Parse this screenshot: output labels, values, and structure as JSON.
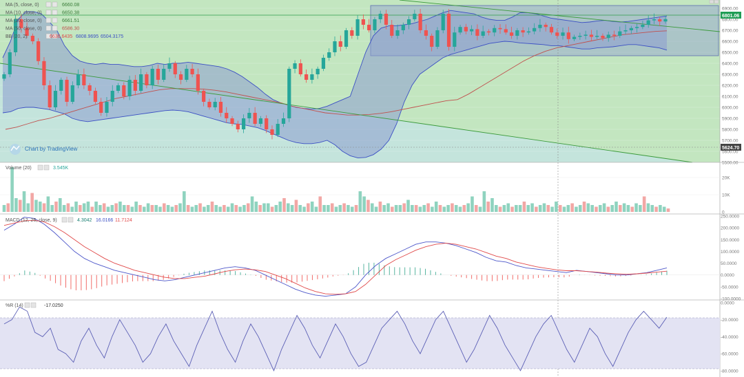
{
  "watermark": {
    "text": "Chart by TradingView"
  },
  "price_pane": {
    "indicators": [
      {
        "id": "ma5",
        "label": "MA (5, close, 0)",
        "values": [
          "6660.08"
        ]
      },
      {
        "id": "ma10",
        "label": "MA (10, close, 0)",
        "values": [
          "6650.38"
        ]
      },
      {
        "id": "ma20",
        "label": "MA (20, close, 0)",
        "values": [
          "6661.51"
        ]
      },
      {
        "id": "ma50",
        "label": "MA (50, close, 0)",
        "values": [
          "6586.30"
        ]
      },
      {
        "id": "bb",
        "label": "BB (20, 2)",
        "values": [
          "6636.6435",
          "6808.9695",
          "6504.3175"
        ]
      }
    ],
    "last_price": "6801.06",
    "crosshair_price": "5624.70"
  },
  "volume_pane": {
    "label": "Volume (20)",
    "value": "3.545K"
  },
  "macd_pane": {
    "label": "MACD (12, 26, close, 9)",
    "values": [
      "4.3042",
      "16.0166",
      "11.7124"
    ]
  },
  "wr_pane": {
    "label": "%R (14)",
    "value": "-17.0250"
  },
  "colors": {
    "up": "#26a69a",
    "down": "#ef5350",
    "bb_fill": "#8c9dd0",
    "bb_line": "#3b4fc4",
    "green_bg": "#c3e6c0",
    "wr_band": "#e0e0f2",
    "macd": "#4b55c9",
    "signal": "#e04848"
  },
  "chart_data": [
    {
      "type": "candlestick",
      "title": "",
      "ylim": [
        5500,
        6950
      ],
      "y_ticks": [
        "6900.00",
        "6800.00",
        "6700.00",
        "6600.00",
        "6500.00",
        "6400.00",
        "6300.00",
        "6200.00",
        "6100.00",
        "6000.00",
        "5900.00",
        "5800.00",
        "5700.00",
        "5600.00",
        "5500.00"
      ],
      "close": [
        6300,
        6500,
        6800,
        6720,
        6650,
        6600,
        6420,
        6200,
        6000,
        6150,
        6250,
        6050,
        6200,
        6300,
        6200,
        6150,
        6050,
        5950,
        6050,
        6150,
        6200,
        6100,
        6250,
        6150,
        6300,
        6200,
        6350,
        6250,
        6350,
        6400,
        6300,
        6250,
        6350,
        6300,
        6150,
        6050,
        6000,
        6050,
        5950,
        5900,
        5850,
        5800,
        5900,
        5950,
        5850,
        5900,
        5800,
        5750,
        5850,
        5900,
        6350,
        6400,
        6300,
        6250,
        6300,
        6350,
        6450,
        6500,
        6600,
        6550,
        6700,
        6650,
        6800,
        6750,
        6700,
        6800,
        6850,
        6750,
        6650,
        6700,
        6750,
        6800,
        6850,
        6700,
        6650,
        6550,
        6700,
        6850,
        6550,
        6680,
        6730,
        6690,
        6710,
        6650,
        6690,
        6680,
        6720,
        6710,
        6680,
        6650,
        6700,
        6680,
        6690,
        6720,
        6750,
        6730,
        6680,
        6650,
        6680,
        6620,
        6640,
        6650,
        6660,
        6640,
        6650,
        6630,
        6660,
        6650,
        6690,
        6700,
        6720,
        6730,
        6750,
        6790,
        6800,
        6780,
        6801
      ],
      "upper_band": [
        6450,
        6600,
        6800,
        6870,
        6870,
        6850,
        6780,
        6700,
        6560,
        6470,
        6420,
        6400,
        6390,
        6400,
        6390,
        6390,
        6380,
        6370,
        6370,
        6380,
        6400,
        6390,
        6400,
        6400,
        6410,
        6400,
        6390,
        6380,
        6370,
        6350,
        6320,
        6280,
        6230,
        6180,
        6120,
        6070,
        6040,
        6020,
        6000,
        5990,
        5985,
        5990,
        6010,
        6040,
        6070,
        6100,
        6300,
        6500,
        6650,
        6720,
        6740,
        6740,
        6750,
        6760,
        6780,
        6800,
        6830,
        6860,
        6880,
        6870,
        6860,
        6850,
        6820,
        6800,
        6790,
        6790,
        6820,
        6860,
        6860,
        6850,
        6830,
        6810,
        6800,
        6790,
        6780,
        6770,
        6775,
        6785,
        6790,
        6780,
        6775,
        6780,
        6790,
        6800,
        6810,
        6820,
        6830
      ],
      "lower_band": [
        5950,
        5960,
        5990,
        6000,
        6000,
        5990,
        5980,
        5960,
        5940,
        5900,
        5880,
        5870,
        5880,
        5890,
        5900,
        5910,
        5920,
        5930,
        5940,
        5950,
        5960,
        5970,
        5975,
        5970,
        5960,
        5940,
        5920,
        5900,
        5880,
        5860,
        5850,
        5845,
        5830,
        5815,
        5790,
        5760,
        5730,
        5700,
        5680,
        5670,
        5670,
        5680,
        5700,
        5660,
        5600,
        5560,
        5540,
        5545,
        5570,
        5620,
        5700,
        5850,
        6050,
        6200,
        6300,
        6350,
        6400,
        6450,
        6480,
        6500,
        6520,
        6540,
        6560,
        6580,
        6590,
        6600,
        6595,
        6585,
        6580,
        6575,
        6570,
        6560,
        6560,
        6550,
        6540,
        6530,
        6530,
        6540,
        6545,
        6550,
        6560,
        6570,
        6570,
        6560,
        6550,
        6540,
        6520
      ],
      "ma50": [
        5800,
        5820,
        5850,
        5880,
        5900,
        5930,
        5960,
        5990,
        6020,
        6050,
        6080,
        6100,
        6120,
        6140,
        6160,
        6170,
        6170,
        6170,
        6165,
        6155,
        6140,
        6120,
        6100,
        6080,
        6060,
        6040,
        6010,
        5990,
        5970,
        5950,
        5940,
        5930,
        5930,
        5935,
        5945,
        5960,
        5980,
        6000,
        6020,
        6040,
        6060,
        6070,
        6120,
        6180,
        6240,
        6300,
        6360,
        6420,
        6470,
        6510,
        6540,
        6560,
        6580,
        6600,
        6620,
        6640,
        6660,
        6670,
        6680,
        6690,
        6695
      ],
      "trendlines": "descending support channel"
    },
    {
      "type": "bar",
      "title": "",
      "ylim": [
        0,
        28000
      ],
      "y_ticks": [
        "20K",
        "10K",
        "0"
      ],
      "values": [
        4,
        5,
        26,
        8,
        7,
        12,
        5,
        11,
        7,
        6,
        5,
        9,
        4,
        6,
        8,
        4,
        5,
        3,
        6,
        4,
        5,
        6,
        3,
        6,
        4,
        5,
        3,
        4,
        5,
        6,
        4,
        4,
        3,
        6,
        4,
        3,
        5,
        4,
        4,
        3,
        5,
        4,
        3,
        4,
        5,
        12,
        4,
        3,
        4,
        5,
        3,
        4,
        6,
        4,
        3,
        4,
        3,
        5,
        4,
        3,
        4,
        5,
        9,
        6,
        4,
        5,
        5,
        3,
        4,
        6,
        8,
        5,
        4,
        7,
        4,
        3,
        5,
        6,
        3,
        9,
        4,
        4,
        5,
        3,
        4,
        5,
        4,
        3,
        4,
        12,
        9,
        7,
        5,
        3,
        6,
        4,
        5,
        3,
        4,
        4,
        5,
        7,
        4,
        4,
        3,
        4,
        5,
        3,
        6,
        4,
        3,
        4,
        5,
        4,
        3,
        4,
        5,
        9,
        4,
        3,
        12,
        6,
        8,
        4,
        3,
        4,
        5,
        3,
        4,
        4,
        6,
        4,
        5,
        3,
        4,
        5,
        4,
        3,
        6,
        4,
        3,
        4,
        5,
        3,
        4,
        6,
        5,
        4,
        3,
        4,
        5,
        3,
        4,
        6,
        4,
        5,
        4,
        3,
        5,
        4,
        9,
        5,
        4,
        3,
        4,
        3,
        2
      ]
    },
    {
      "type": "line",
      "title": "",
      "ylim": [
        -100,
        250
      ],
      "y_ticks": [
        "250.0000",
        "200.0000",
        "150.0000",
        "100.0000",
        "50.0000",
        "0.0000",
        "-50.0000",
        "-100.0000"
      ],
      "series": [
        {
          "values": [
            190,
            215,
            245,
            240,
            215,
            180,
            140,
            100,
            70,
            50,
            35,
            20,
            10,
            0,
            -10,
            -20,
            -25,
            -20,
            -10,
            0,
            10,
            20,
            30,
            35,
            30,
            20,
            0,
            -20,
            -40,
            -60,
            -75,
            -85,
            -90,
            -85,
            -80,
            -50,
            0,
            40,
            70,
            90,
            110,
            130,
            140,
            140,
            135,
            125,
            110,
            95,
            75,
            60,
            55,
            40,
            30,
            25,
            20,
            15,
            10,
            20,
            15,
            10,
            5,
            0,
            0,
            5,
            10,
            20,
            30
          ]
        },
        {
          "values": [
            210,
            220,
            230,
            232,
            225,
            205,
            180,
            150,
            120,
            95,
            70,
            50,
            35,
            20,
            10,
            0,
            -10,
            -15,
            -15,
            -10,
            -5,
            5,
            15,
            22,
            25,
            22,
            15,
            0,
            -15,
            -35,
            -55,
            -70,
            -80,
            -82,
            -80,
            -70,
            -40,
            0,
            40,
            65,
            85,
            105,
            120,
            130,
            135,
            130,
            120,
            110,
            95,
            80,
            70,
            55,
            45,
            35,
            28,
            22,
            18,
            18,
            15,
            12,
            8,
            5,
            3,
            5,
            8,
            12,
            16
          ]
        }
      ]
    },
    {
      "type": "line",
      "title": "",
      "ylim": [
        -85,
        0
      ],
      "y_ticks": [
        "0.0000",
        "-20.0000",
        "-40.0000",
        "-60.0000",
        "-80.0000"
      ],
      "series": [
        {
          "values": [
            -25,
            -20,
            -5,
            -10,
            -35,
            -40,
            -30,
            -55,
            -60,
            -70,
            -45,
            -30,
            -50,
            -65,
            -40,
            -20,
            -35,
            -50,
            -70,
            -60,
            -40,
            -25,
            -45,
            -60,
            -75,
            -50,
            -30,
            -10,
            -35,
            -55,
            -70,
            -45,
            -25,
            -40,
            -60,
            -80,
            -55,
            -35,
            -15,
            -30,
            -50,
            -65,
            -45,
            -25,
            -40,
            -60,
            -75,
            -70,
            -50,
            -30,
            -20,
            -10,
            -25,
            -45,
            -60,
            -40,
            -20,
            -10,
            -30,
            -50,
            -70,
            -55,
            -35,
            -15,
            -30,
            -50,
            -65,
            -80,
            -60,
            -40,
            -25,
            -15,
            -35,
            -55,
            -70,
            -50,
            -30,
            -40,
            -60,
            -75,
            -55,
            -35,
            -20,
            -10,
            -20,
            -30,
            -17
          ]
        }
      ]
    }
  ]
}
